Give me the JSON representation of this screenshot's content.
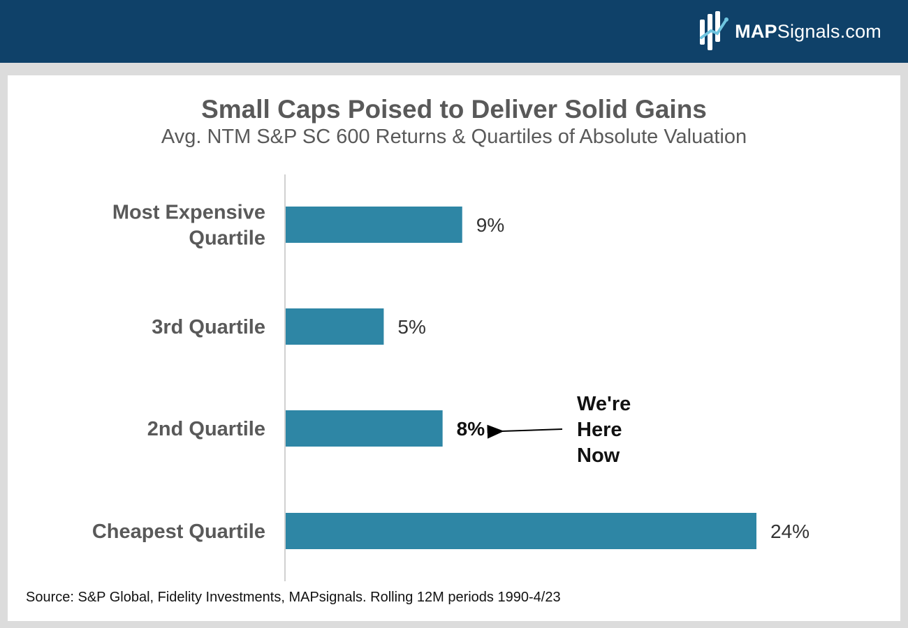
{
  "header": {
    "logo_bold": "MAP",
    "logo_regular": "Signals.com",
    "bg_color": "#0f4169"
  },
  "chart_data": {
    "type": "bar",
    "orientation": "horizontal",
    "title": "Small Caps Poised to Deliver Solid Gains",
    "subtitle": "Avg. NTM S&P SC 600 Returns & Quartiles of Absolute Valuation",
    "categories": [
      [
        "Most Expensive",
        "Quartile"
      ],
      [
        "3rd Quartile"
      ],
      [
        "2nd Quartile"
      ],
      [
        "Cheapest Quartile"
      ]
    ],
    "values": [
      9,
      5,
      8,
      24
    ],
    "value_labels": [
      "9%",
      "5%",
      "8%",
      "24%"
    ],
    "highlight_index": 2,
    "bar_color": "#2e86a5",
    "xlim": [
      0,
      24
    ],
    "grid": false,
    "legend": "none",
    "annotation": {
      "lines": [
        "We're",
        "Here",
        "Now"
      ],
      "target_index": 2
    },
    "source": "Source: S&P Global, Fidelity Investments, MAPsignals. Rolling 12M periods 1990-4/23"
  }
}
